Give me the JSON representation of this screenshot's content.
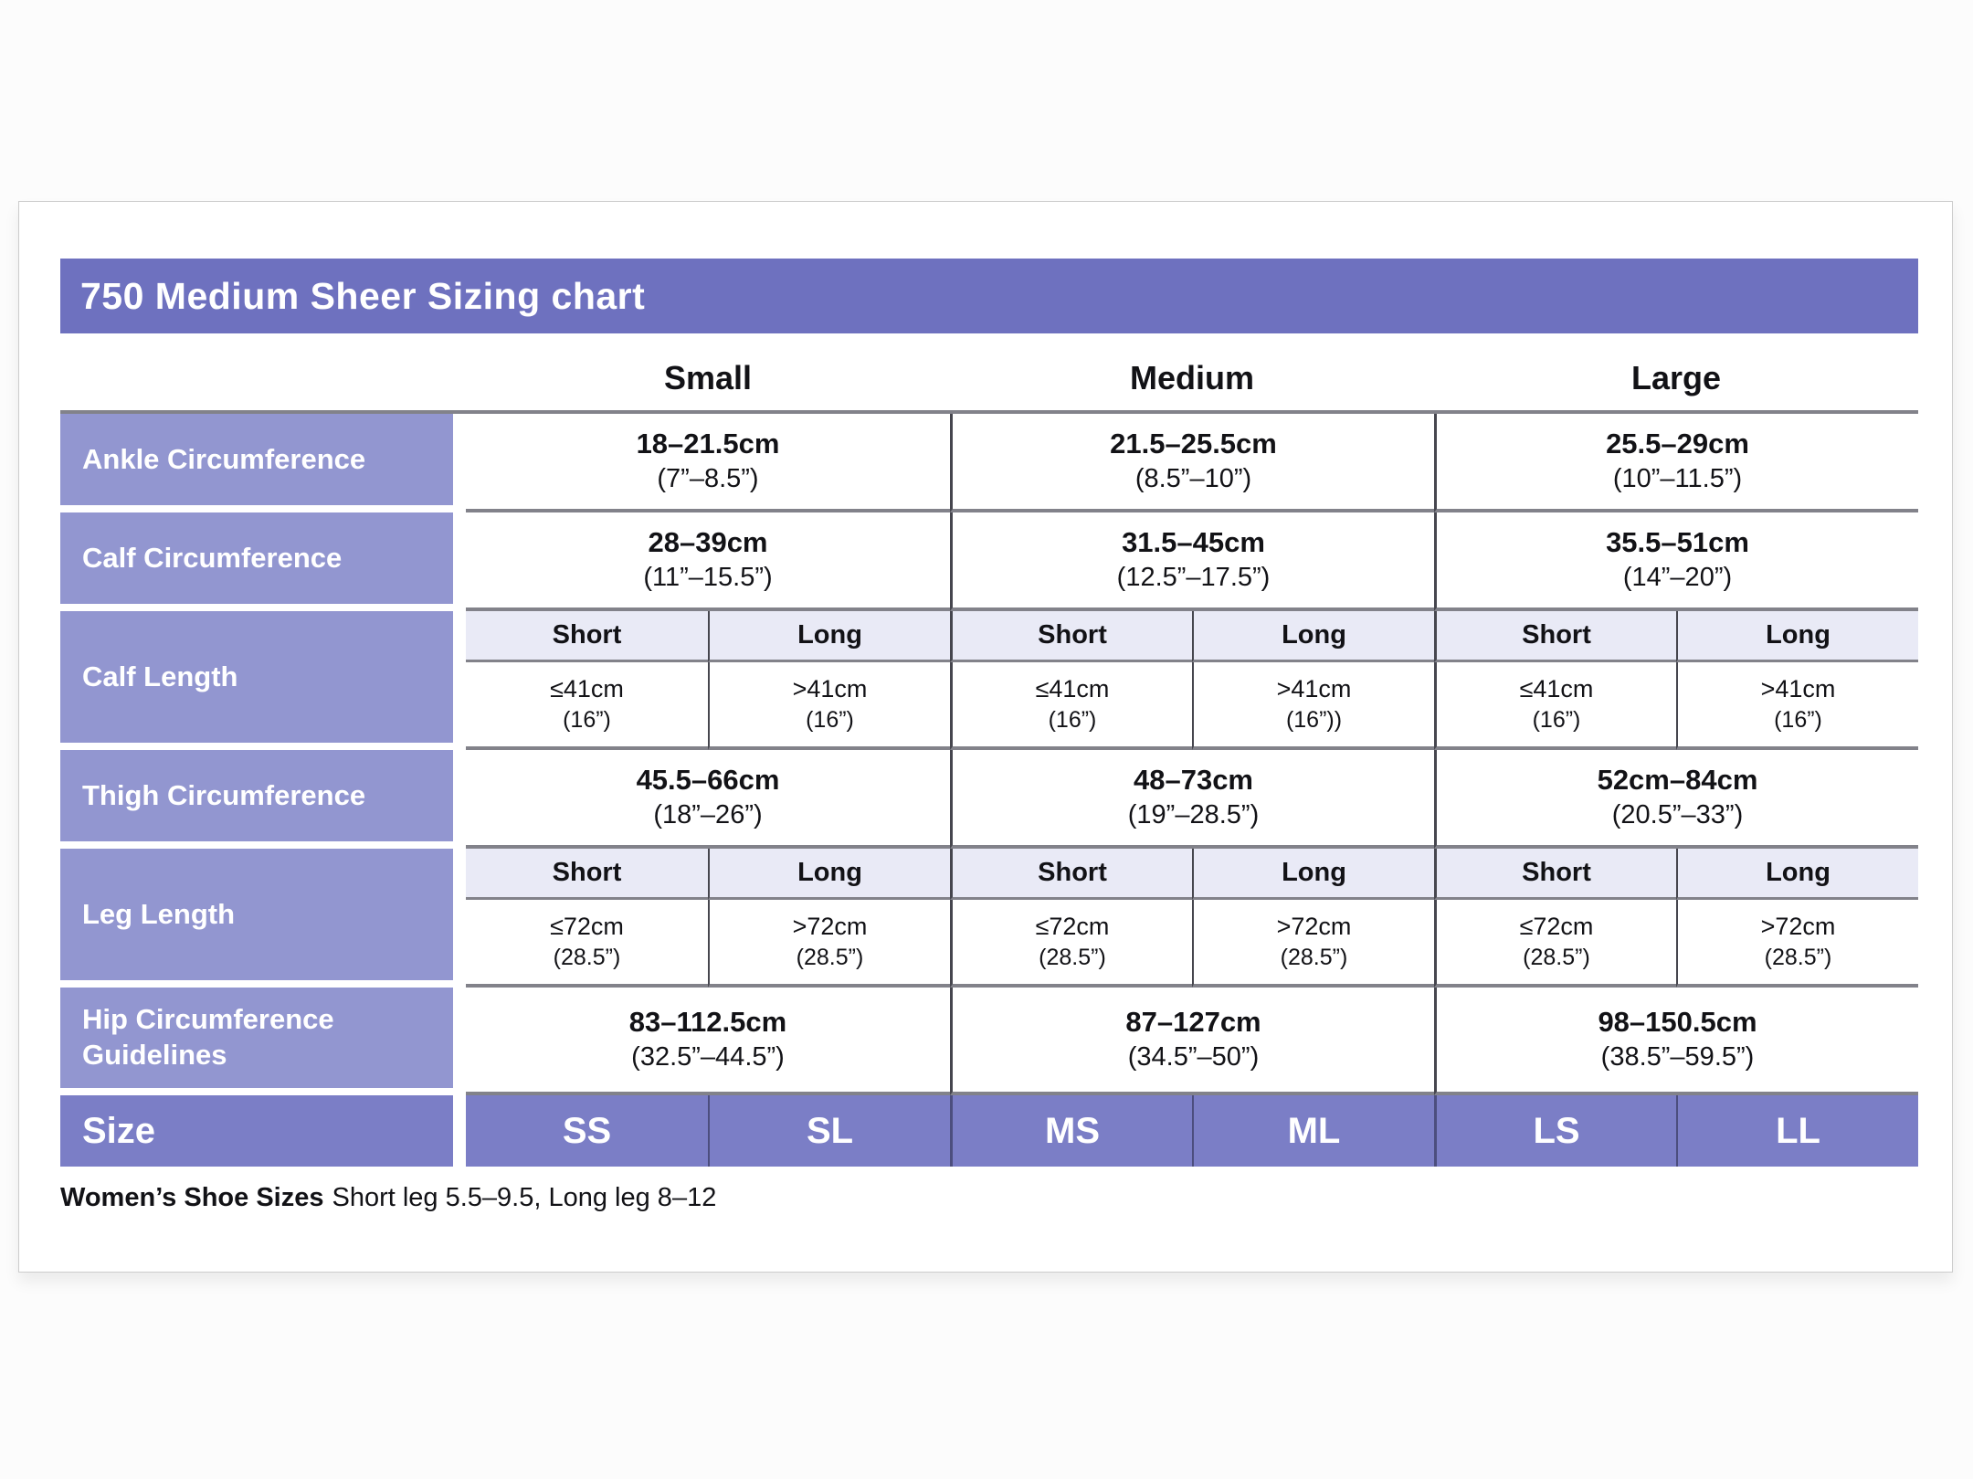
{
  "table": {
    "title": "750 Medium Sheer Sizing chart",
    "size_headers": [
      "Small",
      "Medium",
      "Large"
    ],
    "rows": {
      "ankle": {
        "label": "Ankle Circumference",
        "values": [
          {
            "cm": "18–21.5cm",
            "in": "(7”–8.5”)"
          },
          {
            "cm": "21.5–25.5cm",
            "in": "(8.5”–10”)"
          },
          {
            "cm": "25.5–29cm",
            "in": "(10”–11.5”)"
          }
        ]
      },
      "calf_circumference": {
        "label": "Calf Circumference",
        "values": [
          {
            "cm": "28–39cm",
            "in": "(11”–15.5”)"
          },
          {
            "cm": "31.5–45cm",
            "in": "(12.5”–17.5”)"
          },
          {
            "cm": "35.5–51cm",
            "in": "(14”–20”)"
          }
        ]
      },
      "calf_length": {
        "label": "Calf Length",
        "subheaders": [
          "Short",
          "Long",
          "Short",
          "Long",
          "Short",
          "Long"
        ],
        "values": [
          {
            "cm": "≤41cm",
            "in": "(16”)"
          },
          {
            "cm": ">41cm",
            "in": "(16”)"
          },
          {
            "cm": "≤41cm",
            "in": "(16”)"
          },
          {
            "cm": ">41cm",
            "in": "(16”))"
          },
          {
            "cm": "≤41cm",
            "in": "(16”)"
          },
          {
            "cm": ">41cm",
            "in": "(16”)"
          }
        ]
      },
      "thigh": {
        "label": "Thigh Circumference",
        "values": [
          {
            "cm": "45.5–66cm",
            "in": "(18”–26”)"
          },
          {
            "cm": "48–73cm",
            "in": "(19”–28.5”)"
          },
          {
            "cm": "52cm–84cm",
            "in": "(20.5”–33”)"
          }
        ]
      },
      "leg_length": {
        "label": "Leg Length",
        "subheaders": [
          "Short",
          "Long",
          "Short",
          "Long",
          "Short",
          "Long"
        ],
        "values": [
          {
            "cm": "≤72cm",
            "in": "(28.5”)"
          },
          {
            "cm": ">72cm",
            "in": "(28.5”)"
          },
          {
            "cm": "≤72cm",
            "in": "(28.5”)"
          },
          {
            "cm": ">72cm",
            "in": "(28.5”)"
          },
          {
            "cm": "≤72cm",
            "in": "(28.5”)"
          },
          {
            "cm": ">72cm",
            "in": "(28.5”)"
          }
        ]
      },
      "hip": {
        "label": "Hip Circumference Guidelines",
        "values": [
          {
            "cm": "83–112.5cm",
            "in": "(32.5”–44.5”)"
          },
          {
            "cm": "87–127cm",
            "in": "(34.5”–50”)"
          },
          {
            "cm": "98–150.5cm",
            "in": "(38.5”–59.5”)"
          }
        ]
      },
      "size": {
        "label": "Size",
        "values": [
          "SS",
          "SL",
          "MS",
          "ML",
          "LS",
          "LL"
        ]
      }
    },
    "footer": {
      "bold": "Women’s Shoe Sizes",
      "text": "Short leg 5.5–9.5, Long leg 8–12"
    }
  },
  "colors": {
    "title_bar": "#6e71bf",
    "row_label": "#9296d0",
    "size_row": "#7b7ec6",
    "subheader_bg": "#e9eaf6",
    "border_dark": "#46464e",
    "border_gray": "#82828a",
    "size_divider": "#4c4e7e",
    "text_dark": "#121216"
  }
}
